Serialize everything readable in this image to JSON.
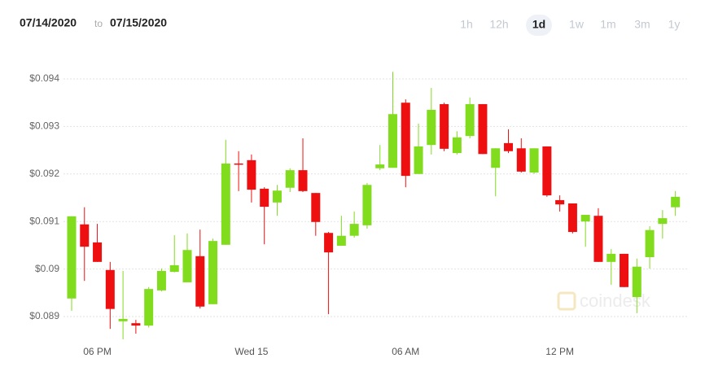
{
  "header": {
    "start_date": "07/14/2020",
    "separator": "to",
    "end_date": "07/15/2020",
    "ranges": [
      "1h",
      "12h",
      "1d",
      "1w",
      "1m",
      "3m",
      "1y"
    ],
    "selected_range": 2
  },
  "chart_data": {
    "type": "candlestick",
    "watermark": "coindesk",
    "categories": [
      null,
      null,
      "06 PM",
      null,
      null,
      null,
      null,
      null,
      null,
      null,
      null,
      null,
      null,
      null,
      "Wed 15",
      null,
      null,
      null,
      null,
      null,
      null,
      null,
      null,
      null,
      null,
      null,
      "06 AM",
      null,
      null,
      null,
      null,
      null,
      null,
      null,
      null,
      null,
      null,
      null,
      "12 PM",
      null,
      null,
      null,
      null,
      null,
      null,
      null,
      null,
      null
    ],
    "open": [
      0.08938,
      0.09094,
      0.09056,
      0.08998,
      0.0889,
      0.08886,
      0.08881,
      0.08955,
      0.08994,
      0.08972,
      0.09027,
      0.08926,
      0.09051,
      0.09222,
      0.09229,
      0.09169,
      0.0914,
      0.09171,
      0.09208,
      0.0916,
      0.09076,
      0.09049,
      0.0907,
      0.09092,
      0.09212,
      0.09213,
      0.0935,
      0.092,
      0.09261,
      0.09347,
      0.09244,
      0.0928,
      0.09347,
      0.09213,
      0.09265,
      0.09254,
      0.09203,
      0.09258,
      0.09145,
      0.09138,
      0.091,
      0.09112,
      0.09015,
      0.09032,
      0.08941,
      0.09025,
      0.09095,
      0.0913
    ],
    "high": [
      0.09111,
      0.0913,
      0.09095,
      0.09015,
      0.08996,
      0.08893,
      0.08962,
      0.09001,
      0.09071,
      0.09075,
      0.09083,
      0.09064,
      0.09272,
      0.09248,
      0.09241,
      0.09172,
      0.09177,
      0.09212,
      0.09275,
      0.0916,
      0.09078,
      0.09112,
      0.09121,
      0.09181,
      0.09261,
      0.09415,
      0.09357,
      0.09306,
      0.09381,
      0.0935,
      0.0929,
      0.09361,
      0.09347,
      0.09254,
      0.09294,
      0.09275,
      0.09254,
      0.09258,
      0.09155,
      0.09138,
      0.09114,
      0.09128,
      0.09042,
      0.09032,
      0.09022,
      0.0909,
      0.09124,
      0.09164
    ],
    "low": [
      0.08912,
      0.08975,
      0.09015,
      0.08874,
      0.08852,
      0.08864,
      0.08877,
      0.08953,
      0.08993,
      0.08972,
      0.08917,
      0.08926,
      0.09051,
      0.09164,
      0.0914,
      0.09052,
      0.09112,
      0.09162,
      0.09162,
      0.0907,
      0.08905,
      0.09049,
      0.09066,
      0.09085,
      0.09208,
      0.09213,
      0.09172,
      0.092,
      0.09241,
      0.09248,
      0.09241,
      0.09275,
      0.09242,
      0.09153,
      0.09244,
      0.09203,
      0.092,
      0.09152,
      0.09121,
      0.09075,
      0.09047,
      0.09015,
      0.08967,
      0.08962,
      0.08907,
      0.09001,
      0.09064,
      0.09112
    ],
    "close": [
      0.09111,
      0.09047,
      0.09015,
      0.08916,
      0.08895,
      0.08881,
      0.08958,
      0.08996,
      0.09008,
      0.0904,
      0.08921,
      0.09059,
      0.09222,
      0.0922,
      0.09167,
      0.09131,
      0.09165,
      0.09208,
      0.09164,
      0.09099,
      0.09035,
      0.0907,
      0.09095,
      0.09177,
      0.0922,
      0.09326,
      0.09196,
      0.09258,
      0.09335,
      0.09253,
      0.09277,
      0.09347,
      0.09242,
      0.09254,
      0.09248,
      0.09205,
      0.09254,
      0.09155,
      0.09136,
      0.09078,
      0.09114,
      0.09015,
      0.09032,
      0.08962,
      0.09005,
      0.09082,
      0.09107,
      0.09152
    ],
    "up_color": "#82dc1e",
    "down_color": "#ee1010",
    "ylim": [
      0.0885,
      0.0945
    ],
    "yticks": [
      {
        "value": 0.089,
        "label": "$0.089"
      },
      {
        "value": 0.09,
        "label": "$0.09"
      },
      {
        "value": 0.091,
        "label": "$0.091"
      },
      {
        "value": 0.092,
        "label": "$0.092"
      },
      {
        "value": 0.093,
        "label": "$0.093"
      },
      {
        "value": 0.094,
        "label": "$0.094"
      }
    ],
    "grid": true
  }
}
